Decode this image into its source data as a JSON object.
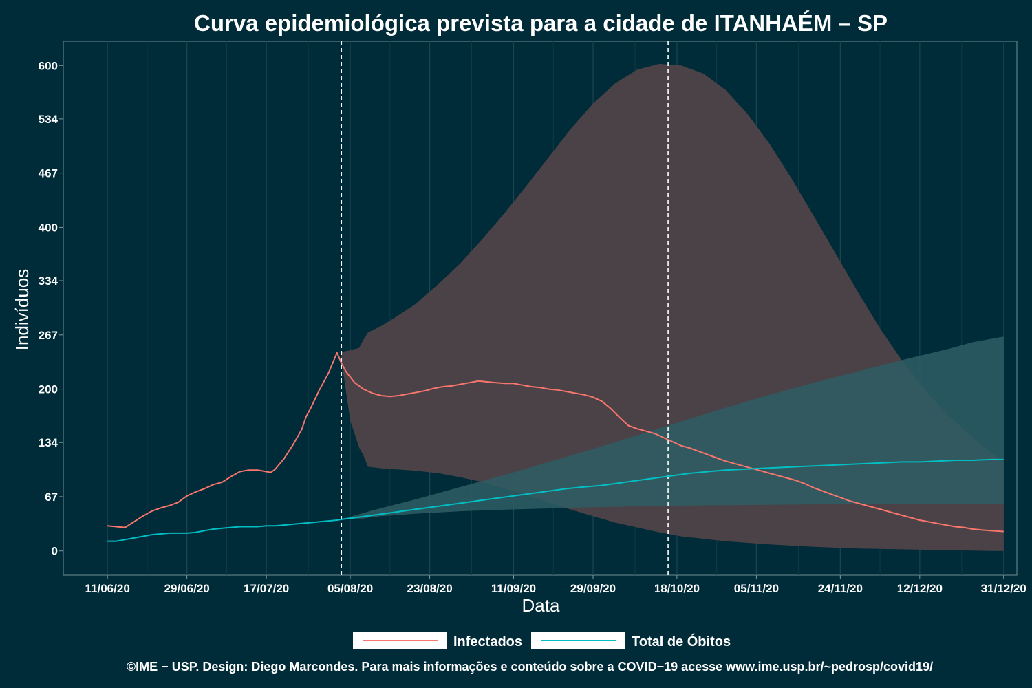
{
  "chart_data": {
    "type": "line",
    "title": "Curva epidemiológica prevista para a cidade de ITANHAÉM – SP",
    "xlabel": "Data",
    "ylabel": "Indivíduos",
    "y_ticks": [
      "0",
      "67",
      "134",
      "200",
      "267",
      "334",
      "400",
      "467",
      "534",
      "600"
    ],
    "y_tick_values": [
      0,
      67,
      134,
      200,
      267,
      334,
      400,
      467,
      534,
      600
    ],
    "ylim": [
      -30,
      630
    ],
    "x_ticks": [
      "11/06/20",
      "29/06/20",
      "17/07/20",
      "05/08/20",
      "23/08/20",
      "11/09/20",
      "29/09/20",
      "18/10/20",
      "05/11/20",
      "24/11/20",
      "12/12/20",
      "31/12/20"
    ],
    "x_tick_days": [
      0,
      18,
      36,
      55,
      73,
      92,
      110,
      129,
      147,
      166,
      184,
      203
    ],
    "xlim_days": [
      -10,
      206
    ],
    "grid": true,
    "legend_position": "bottom",
    "vertical_reference_lines": [
      "03/08/20",
      "16/10/20"
    ],
    "vertical_reference_line_days": [
      53,
      127
    ],
    "series": [
      {
        "name": "Infectados",
        "color": "#f8766d",
        "band_color": "#4a4247",
        "points": [
          [
            0,
            31
          ],
          [
            2,
            30
          ],
          [
            4,
            29
          ],
          [
            6,
            36
          ],
          [
            8,
            43
          ],
          [
            10,
            49
          ],
          [
            12,
            53
          ],
          [
            14,
            56
          ],
          [
            16,
            60
          ],
          [
            18,
            68
          ],
          [
            20,
            73
          ],
          [
            22,
            77
          ],
          [
            24,
            82
          ],
          [
            26,
            85
          ],
          [
            28,
            92
          ],
          [
            30,
            98
          ],
          [
            32,
            100
          ],
          [
            34,
            100
          ],
          [
            36,
            98
          ],
          [
            37,
            97
          ],
          [
            38,
            101
          ],
          [
            40,
            114
          ],
          [
            42,
            131
          ],
          [
            44,
            150
          ],
          [
            45,
            166
          ],
          [
            46,
            176
          ],
          [
            48,
            199
          ],
          [
            50,
            219
          ],
          [
            51,
            232
          ],
          [
            52,
            245
          ],
          [
            53,
            232
          ],
          [
            54,
            222
          ],
          [
            56,
            208
          ],
          [
            58,
            200
          ],
          [
            60,
            195
          ],
          [
            62,
            192
          ],
          [
            64,
            191
          ],
          [
            66,
            192
          ],
          [
            68,
            194
          ],
          [
            70,
            196
          ],
          [
            72,
            198
          ],
          [
            74,
            201
          ],
          [
            76,
            203
          ],
          [
            78,
            204
          ],
          [
            80,
            206
          ],
          [
            82,
            208
          ],
          [
            84,
            210
          ],
          [
            86,
            209
          ],
          [
            88,
            208
          ],
          [
            90,
            207
          ],
          [
            92,
            207
          ],
          [
            94,
            205
          ],
          [
            96,
            203
          ],
          [
            98,
            202
          ],
          [
            100,
            200
          ],
          [
            102,
            199
          ],
          [
            104,
            197
          ],
          [
            106,
            195
          ],
          [
            108,
            193
          ],
          [
            110,
            190
          ],
          [
            112,
            185
          ],
          [
            114,
            176
          ],
          [
            116,
            165
          ],
          [
            118,
            155
          ],
          [
            120,
            151
          ],
          [
            122,
            148
          ],
          [
            124,
            145
          ],
          [
            126,
            140
          ],
          [
            128,
            135
          ],
          [
            130,
            130
          ],
          [
            132,
            127
          ],
          [
            134,
            123
          ],
          [
            136,
            119
          ],
          [
            138,
            115
          ],
          [
            140,
            111
          ],
          [
            142,
            108
          ],
          [
            144,
            105
          ],
          [
            146,
            102
          ],
          [
            148,
            99
          ],
          [
            150,
            96
          ],
          [
            152,
            93
          ],
          [
            154,
            90
          ],
          [
            156,
            87
          ],
          [
            158,
            83
          ],
          [
            160,
            78
          ],
          [
            162,
            74
          ],
          [
            164,
            70
          ],
          [
            166,
            66
          ],
          [
            168,
            62
          ],
          [
            170,
            59
          ],
          [
            172,
            56
          ],
          [
            174,
            53
          ],
          [
            176,
            50
          ],
          [
            178,
            47
          ],
          [
            180,
            44
          ],
          [
            182,
            41
          ],
          [
            184,
            38
          ],
          [
            186,
            36
          ],
          [
            188,
            34
          ],
          [
            190,
            32
          ],
          [
            192,
            30
          ],
          [
            194,
            29
          ],
          [
            196,
            27
          ],
          [
            198,
            26
          ],
          [
            200,
            25
          ],
          [
            203,
            24
          ]
        ],
        "band_upper": [
          [
            53,
            246
          ],
          [
            55,
            248
          ],
          [
            57,
            251
          ],
          [
            58,
            261
          ],
          [
            59,
            270
          ],
          [
            62,
            278
          ],
          [
            65,
            288
          ],
          [
            70,
            306
          ],
          [
            75,
            330
          ],
          [
            80,
            356
          ],
          [
            85,
            386
          ],
          [
            90,
            418
          ],
          [
            95,
            452
          ],
          [
            100,
            487
          ],
          [
            105,
            522
          ],
          [
            110,
            553
          ],
          [
            115,
            578
          ],
          [
            120,
            595
          ],
          [
            125,
            602
          ],
          [
            130,
            600
          ],
          [
            135,
            590
          ],
          [
            140,
            570
          ],
          [
            145,
            540
          ],
          [
            150,
            503
          ],
          [
            155,
            460
          ],
          [
            160,
            414
          ],
          [
            165,
            367
          ],
          [
            170,
            320
          ],
          [
            175,
            275
          ],
          [
            180,
            235
          ],
          [
            185,
            200
          ],
          [
            190,
            170
          ],
          [
            195,
            145
          ],
          [
            200,
            122
          ],
          [
            203,
            110
          ]
        ],
        "band_lower": [
          [
            203,
            0
          ],
          [
            200,
            0
          ],
          [
            190,
            1
          ],
          [
            180,
            2
          ],
          [
            170,
            3
          ],
          [
            160,
            5
          ],
          [
            150,
            8
          ],
          [
            140,
            12
          ],
          [
            135,
            15
          ],
          [
            130,
            18
          ],
          [
            125,
            23
          ],
          [
            120,
            29
          ],
          [
            115,
            35
          ],
          [
            110,
            43
          ],
          [
            105,
            51
          ],
          [
            100,
            60
          ],
          [
            95,
            69
          ],
          [
            90,
            77
          ],
          [
            85,
            85
          ],
          [
            80,
            91
          ],
          [
            75,
            96
          ],
          [
            70,
            99
          ],
          [
            65,
            101
          ],
          [
            62,
            102
          ],
          [
            59,
            104
          ],
          [
            58,
            118
          ],
          [
            57,
            128
          ],
          [
            55,
            161
          ],
          [
            53,
            236
          ]
        ]
      },
      {
        "name": "Total de Óbitos",
        "color": "#00bfc4",
        "band_color": "#2d5c63",
        "points": [
          [
            0,
            12
          ],
          [
            2,
            12
          ],
          [
            4,
            14
          ],
          [
            6,
            16
          ],
          [
            8,
            18
          ],
          [
            10,
            20
          ],
          [
            12,
            21
          ],
          [
            14,
            22
          ],
          [
            16,
            22
          ],
          [
            18,
            22
          ],
          [
            20,
            23
          ],
          [
            22,
            25
          ],
          [
            24,
            27
          ],
          [
            26,
            28
          ],
          [
            28,
            29
          ],
          [
            30,
            30
          ],
          [
            32,
            30
          ],
          [
            34,
            30
          ],
          [
            36,
            31
          ],
          [
            38,
            31
          ],
          [
            40,
            32
          ],
          [
            42,
            33
          ],
          [
            44,
            34
          ],
          [
            46,
            35
          ],
          [
            48,
            36
          ],
          [
            50,
            37
          ],
          [
            52,
            38
          ],
          [
            53,
            39
          ],
          [
            56,
            41
          ],
          [
            60,
            44
          ],
          [
            64,
            47
          ],
          [
            68,
            50
          ],
          [
            72,
            53
          ],
          [
            76,
            56
          ],
          [
            80,
            59
          ],
          [
            84,
            62
          ],
          [
            88,
            65
          ],
          [
            92,
            68
          ],
          [
            96,
            71
          ],
          [
            100,
            74
          ],
          [
            104,
            77
          ],
          [
            108,
            79
          ],
          [
            112,
            81
          ],
          [
            116,
            84
          ],
          [
            120,
            87
          ],
          [
            124,
            90
          ],
          [
            128,
            93
          ],
          [
            132,
            96
          ],
          [
            136,
            98
          ],
          [
            140,
            100
          ],
          [
            144,
            101
          ],
          [
            148,
            102
          ],
          [
            152,
            103
          ],
          [
            156,
            104
          ],
          [
            160,
            105
          ],
          [
            164,
            106
          ],
          [
            168,
            107
          ],
          [
            172,
            108
          ],
          [
            176,
            109
          ],
          [
            180,
            110
          ],
          [
            184,
            110
          ],
          [
            188,
            111
          ],
          [
            192,
            112
          ],
          [
            196,
            112
          ],
          [
            200,
            113
          ],
          [
            203,
            113
          ]
        ],
        "band_upper": [
          [
            53,
            39
          ],
          [
            60,
            50
          ],
          [
            70,
            64
          ],
          [
            80,
            79
          ],
          [
            90,
            94
          ],
          [
            100,
            110
          ],
          [
            110,
            126
          ],
          [
            120,
            143
          ],
          [
            130,
            160
          ],
          [
            140,
            177
          ],
          [
            150,
            193
          ],
          [
            160,
            208
          ],
          [
            170,
            222
          ],
          [
            180,
            236
          ],
          [
            190,
            249
          ],
          [
            196,
            258
          ],
          [
            203,
            265
          ]
        ],
        "band_lower": [
          [
            203,
            58
          ],
          [
            190,
            58
          ],
          [
            170,
            58
          ],
          [
            150,
            57
          ],
          [
            130,
            56
          ],
          [
            110,
            54
          ],
          [
            90,
            51
          ],
          [
            80,
            49
          ],
          [
            70,
            46
          ],
          [
            62,
            43
          ],
          [
            59,
            41
          ],
          [
            58,
            40
          ],
          [
            56,
            40
          ],
          [
            53,
            39
          ]
        ]
      }
    ]
  },
  "caption": "©IME − USP. Design: Diego Marcondes. Para mais informações e conteúdo sobre a COVID−19 acesse www.ime.usp.br/~pedrosp/covid19/"
}
